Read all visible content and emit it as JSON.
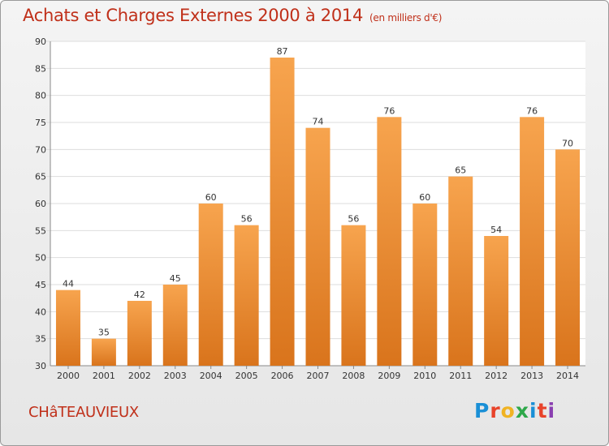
{
  "header": {
    "title": "Achats et Charges Externes 2000 à 2014",
    "unit": "(en milliers d'€)"
  },
  "footer": {
    "city": "CHâTEAUVIEUX",
    "logo_letters": [
      "P",
      "r",
      "o",
      "x",
      "i",
      "t",
      "i"
    ],
    "logo_colors": [
      "#1a8fd6",
      "#e8432a",
      "#f0b323",
      "#2ea84a",
      "#1a8fd6",
      "#e8432a",
      "#8a3fb0"
    ]
  },
  "colors": {
    "bar_top": "#f7a44e",
    "bar_bottom": "#d9741c",
    "title": "#c0301a"
  },
  "chart_data": {
    "type": "bar",
    "title": "Achats et Charges Externes 2000 à 2014",
    "subtitle": "(en milliers d'€)",
    "xlabel": "",
    "ylabel": "",
    "categories": [
      "2000",
      "2001",
      "2002",
      "2003",
      "2004",
      "2005",
      "2006",
      "2007",
      "2008",
      "2009",
      "2010",
      "2011",
      "2012",
      "2013",
      "2014"
    ],
    "values": [
      44,
      35,
      42,
      45,
      60,
      56,
      87,
      74,
      56,
      76,
      60,
      65,
      54,
      76,
      70
    ],
    "ylim": [
      30,
      90
    ],
    "yticks": [
      30,
      35,
      40,
      45,
      50,
      55,
      60,
      65,
      70,
      75,
      80,
      85,
      90
    ],
    "grid": true,
    "legend": "none"
  }
}
